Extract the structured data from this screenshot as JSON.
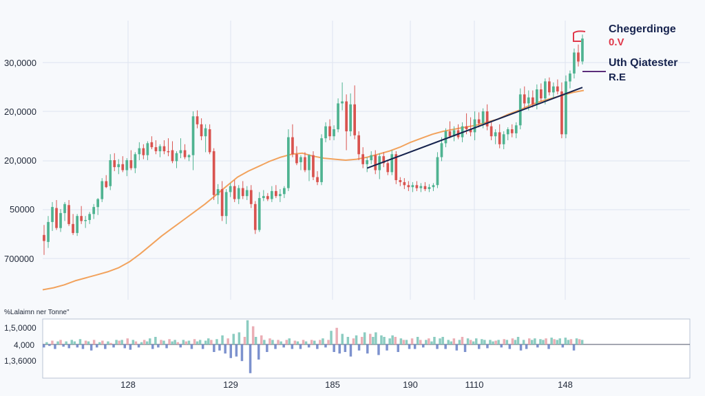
{
  "chart_data": {
    "type": "candlestick",
    "grid": true,
    "price_panel": {
      "y_tick_labels": [
        "30,0000",
        "20,0000",
        "20,0000",
        "50000",
        "700000"
      ],
      "x_tick_labels": [
        "128",
        "129",
        "185",
        "190",
        "1110",
        "148"
      ],
      "candles": [
        {
          "o": 6.5,
          "h": 7.5,
          "l": 4.5,
          "c": 5.9
        },
        {
          "o": 5.8,
          "h": 8.4,
          "l": 5.2,
          "c": 7.8
        },
        {
          "o": 7.8,
          "h": 9.8,
          "l": 6.9,
          "c": 9.3
        },
        {
          "o": 9.2,
          "h": 10.0,
          "l": 7.0,
          "c": 7.2
        },
        {
          "o": 7.2,
          "h": 9.1,
          "l": 6.8,
          "c": 8.7
        },
        {
          "o": 8.7,
          "h": 9.8,
          "l": 7.9,
          "c": 9.6
        },
        {
          "o": 9.5,
          "h": 10.0,
          "l": 7.4,
          "c": 7.6
        },
        {
          "o": 7.6,
          "h": 8.6,
          "l": 6.5,
          "c": 6.7
        },
        {
          "o": 6.7,
          "h": 8.6,
          "l": 6.4,
          "c": 8.4
        },
        {
          "o": 8.4,
          "h": 9.4,
          "l": 7.6,
          "c": 7.9
        },
        {
          "o": 7.9,
          "h": 8.4,
          "l": 7.2,
          "c": 8.0
        },
        {
          "o": 8.0,
          "h": 8.8,
          "l": 7.6,
          "c": 8.6
        },
        {
          "o": 8.6,
          "h": 9.6,
          "l": 8.1,
          "c": 9.3
        },
        {
          "o": 9.3,
          "h": 10.2,
          "l": 8.5,
          "c": 10.1
        },
        {
          "o": 10.1,
          "h": 12.2,
          "l": 9.8,
          "c": 11.9
        },
        {
          "o": 11.9,
          "h": 12.5,
          "l": 11.2,
          "c": 11.3
        },
        {
          "o": 11.4,
          "h": 14.6,
          "l": 11.0,
          "c": 14.0
        },
        {
          "o": 14.0,
          "h": 14.7,
          "l": 12.9,
          "c": 13.3
        },
        {
          "o": 13.3,
          "h": 14.1,
          "l": 12.6,
          "c": 13.6
        },
        {
          "o": 13.6,
          "h": 14.4,
          "l": 12.8,
          "c": 13.0
        },
        {
          "o": 13.0,
          "h": 14.2,
          "l": 12.4,
          "c": 14.0
        },
        {
          "o": 14.0,
          "h": 15.0,
          "l": 13.0,
          "c": 13.2
        },
        {
          "o": 13.2,
          "h": 14.8,
          "l": 12.7,
          "c": 14.6
        },
        {
          "o": 14.6,
          "h": 15.8,
          "l": 14.0,
          "c": 15.2
        },
        {
          "o": 15.2,
          "h": 15.6,
          "l": 14.1,
          "c": 14.5
        },
        {
          "o": 14.5,
          "h": 15.9,
          "l": 14.0,
          "c": 15.7
        },
        {
          "o": 15.8,
          "h": 16.4,
          "l": 15.1,
          "c": 15.3
        },
        {
          "o": 15.3,
          "h": 16.0,
          "l": 14.6,
          "c": 14.9
        },
        {
          "o": 14.9,
          "h": 15.6,
          "l": 14.3,
          "c": 15.4
        },
        {
          "o": 15.4,
          "h": 16.0,
          "l": 14.6,
          "c": 14.9
        },
        {
          "o": 14.9,
          "h": 16.2,
          "l": 14.4,
          "c": 14.8
        },
        {
          "o": 15.0,
          "h": 15.9,
          "l": 13.7,
          "c": 13.9
        },
        {
          "o": 13.9,
          "h": 14.9,
          "l": 13.2,
          "c": 14.7
        },
        {
          "o": 14.7,
          "h": 16.2,
          "l": 14.2,
          "c": 15.0
        },
        {
          "o": 15.0,
          "h": 15.6,
          "l": 14.1,
          "c": 14.3
        },
        {
          "o": 14.3,
          "h": 14.6,
          "l": 13.9,
          "c": 14.5
        },
        {
          "o": 14.5,
          "h": 18.9,
          "l": 13.0,
          "c": 18.4
        },
        {
          "o": 18.4,
          "h": 19.0,
          "l": 17.2,
          "c": 17.6
        },
        {
          "o": 17.6,
          "h": 18.2,
          "l": 16.0,
          "c": 16.4
        },
        {
          "o": 16.4,
          "h": 17.6,
          "l": 14.8,
          "c": 17.2
        },
        {
          "o": 17.1,
          "h": 17.6,
          "l": 14.6,
          "c": 14.8
        },
        {
          "o": 14.9,
          "h": 15.2,
          "l": 10.0,
          "c": 10.5
        },
        {
          "o": 10.5,
          "h": 11.6,
          "l": 9.6,
          "c": 11.1
        },
        {
          "o": 11.1,
          "h": 11.9,
          "l": 7.9,
          "c": 8.4
        },
        {
          "o": 8.4,
          "h": 11.1,
          "l": 7.6,
          "c": 10.8
        },
        {
          "o": 10.8,
          "h": 11.7,
          "l": 10.3,
          "c": 11.4
        },
        {
          "o": 11.4,
          "h": 12.0,
          "l": 9.8,
          "c": 10.1
        },
        {
          "o": 10.1,
          "h": 11.5,
          "l": 9.6,
          "c": 11.2
        },
        {
          "o": 11.2,
          "h": 11.9,
          "l": 10.1,
          "c": 10.4
        },
        {
          "o": 10.4,
          "h": 11.4,
          "l": 10.0,
          "c": 11.0
        },
        {
          "o": 11.0,
          "h": 11.5,
          "l": 9.2,
          "c": 9.6
        },
        {
          "o": 9.6,
          "h": 9.9,
          "l": 6.6,
          "c": 7.0
        },
        {
          "o": 7.0,
          "h": 10.8,
          "l": 6.8,
          "c": 10.2
        },
        {
          "o": 10.2,
          "h": 11.0,
          "l": 9.9,
          "c": 10.4
        },
        {
          "o": 10.4,
          "h": 10.7,
          "l": 9.9,
          "c": 10.1
        },
        {
          "o": 10.1,
          "h": 11.4,
          "l": 9.8,
          "c": 10.9
        },
        {
          "o": 10.9,
          "h": 11.5,
          "l": 10.2,
          "c": 10.4
        },
        {
          "o": 10.4,
          "h": 11.1,
          "l": 9.8,
          "c": 10.6
        },
        {
          "o": 10.6,
          "h": 11.4,
          "l": 10.2,
          "c": 11.2
        },
        {
          "o": 11.2,
          "h": 17.1,
          "l": 10.9,
          "c": 16.3
        },
        {
          "o": 16.3,
          "h": 17.6,
          "l": 14.3,
          "c": 14.6
        },
        {
          "o": 14.6,
          "h": 15.4,
          "l": 13.5,
          "c": 13.7
        },
        {
          "o": 13.8,
          "h": 14.5,
          "l": 13.0,
          "c": 14.3
        },
        {
          "o": 14.3,
          "h": 14.8,
          "l": 12.8,
          "c": 13.0
        },
        {
          "o": 13.0,
          "h": 14.6,
          "l": 11.9,
          "c": 14.5
        },
        {
          "o": 14.5,
          "h": 14.9,
          "l": 12.0,
          "c": 12.3
        },
        {
          "o": 12.3,
          "h": 12.9,
          "l": 11.5,
          "c": 11.8
        },
        {
          "o": 11.8,
          "h": 16.6,
          "l": 11.5,
          "c": 16.2
        },
        {
          "o": 16.2,
          "h": 17.8,
          "l": 15.8,
          "c": 17.4
        },
        {
          "o": 17.4,
          "h": 18.1,
          "l": 16.0,
          "c": 16.4
        },
        {
          "o": 16.4,
          "h": 17.5,
          "l": 16.0,
          "c": 17.1
        },
        {
          "o": 17.1,
          "h": 20.2,
          "l": 16.8,
          "c": 19.7
        },
        {
          "o": 19.7,
          "h": 21.8,
          "l": 19.0,
          "c": 19.9
        },
        {
          "o": 19.9,
          "h": 20.6,
          "l": 15.0,
          "c": 16.9
        },
        {
          "o": 16.9,
          "h": 20.7,
          "l": 16.4,
          "c": 19.6
        },
        {
          "o": 19.6,
          "h": 21.5,
          "l": 16.1,
          "c": 16.5
        },
        {
          "o": 16.5,
          "h": 16.9,
          "l": 14.0,
          "c": 14.6
        },
        {
          "o": 14.6,
          "h": 15.3,
          "l": 13.2,
          "c": 13.6
        },
        {
          "o": 13.6,
          "h": 14.3,
          "l": 12.8,
          "c": 14.0
        },
        {
          "o": 14.0,
          "h": 14.9,
          "l": 13.6,
          "c": 14.5
        },
        {
          "o": 14.5,
          "h": 15.0,
          "l": 12.6,
          "c": 13.0
        },
        {
          "o": 13.0,
          "h": 14.7,
          "l": 12.1,
          "c": 14.4
        },
        {
          "o": 14.4,
          "h": 14.8,
          "l": 13.3,
          "c": 13.7
        },
        {
          "o": 13.7,
          "h": 14.0,
          "l": 12.5,
          "c": 12.8
        },
        {
          "o": 12.8,
          "h": 15.0,
          "l": 12.5,
          "c": 14.6
        },
        {
          "o": 14.6,
          "h": 14.9,
          "l": 11.6,
          "c": 12.0
        },
        {
          "o": 12.0,
          "h": 12.3,
          "l": 11.4,
          "c": 11.8
        },
        {
          "o": 11.8,
          "h": 12.2,
          "l": 11.1,
          "c": 11.5
        },
        {
          "o": 11.5,
          "h": 11.9,
          "l": 10.9,
          "c": 11.3
        },
        {
          "o": 11.3,
          "h": 11.8,
          "l": 10.8,
          "c": 11.5
        },
        {
          "o": 11.5,
          "h": 11.9,
          "l": 10.9,
          "c": 11.2
        },
        {
          "o": 11.2,
          "h": 11.7,
          "l": 10.8,
          "c": 11.4
        },
        {
          "o": 11.4,
          "h": 11.8,
          "l": 10.9,
          "c": 11.1
        },
        {
          "o": 11.1,
          "h": 11.6,
          "l": 10.8,
          "c": 11.3
        },
        {
          "o": 11.3,
          "h": 11.7,
          "l": 10.9,
          "c": 11.5
        },
        {
          "o": 11.5,
          "h": 14.8,
          "l": 11.2,
          "c": 14.3
        },
        {
          "o": 14.3,
          "h": 16.3,
          "l": 13.9,
          "c": 15.7
        },
        {
          "o": 15.7,
          "h": 17.2,
          "l": 15.3,
          "c": 16.9
        },
        {
          "o": 16.9,
          "h": 17.9,
          "l": 16.2,
          "c": 16.4
        },
        {
          "o": 16.4,
          "h": 17.4,
          "l": 15.9,
          "c": 17.0
        },
        {
          "o": 17.0,
          "h": 17.6,
          "l": 16.1,
          "c": 16.3
        },
        {
          "o": 16.3,
          "h": 17.8,
          "l": 15.8,
          "c": 17.4
        },
        {
          "o": 17.4,
          "h": 18.7,
          "l": 16.6,
          "c": 17.1
        },
        {
          "o": 17.1,
          "h": 18.3,
          "l": 16.4,
          "c": 16.8
        },
        {
          "o": 16.8,
          "h": 18.9,
          "l": 16.0,
          "c": 18.1
        },
        {
          "o": 18.1,
          "h": 18.8,
          "l": 17.3,
          "c": 17.7
        },
        {
          "o": 17.7,
          "h": 19.2,
          "l": 17.2,
          "c": 18.9
        },
        {
          "o": 18.9,
          "h": 19.6,
          "l": 17.0,
          "c": 17.4
        },
        {
          "o": 17.4,
          "h": 17.9,
          "l": 16.0,
          "c": 16.4
        },
        {
          "o": 16.4,
          "h": 17.1,
          "l": 15.6,
          "c": 16.8
        },
        {
          "o": 16.8,
          "h": 17.6,
          "l": 15.2,
          "c": 15.6
        },
        {
          "o": 15.6,
          "h": 16.9,
          "l": 15.1,
          "c": 16.6
        },
        {
          "o": 16.6,
          "h": 17.3,
          "l": 16.0,
          "c": 17.1
        },
        {
          "o": 17.1,
          "h": 17.6,
          "l": 16.3,
          "c": 16.7
        },
        {
          "o": 16.7,
          "h": 17.8,
          "l": 16.2,
          "c": 17.5
        },
        {
          "o": 17.5,
          "h": 21.2,
          "l": 17.1,
          "c": 20.6
        },
        {
          "o": 20.6,
          "h": 21.4,
          "l": 19.2,
          "c": 19.7
        },
        {
          "o": 19.7,
          "h": 21.0,
          "l": 19.0,
          "c": 20.3
        },
        {
          "o": 20.3,
          "h": 21.0,
          "l": 19.3,
          "c": 19.6
        },
        {
          "o": 19.6,
          "h": 21.6,
          "l": 19.1,
          "c": 21.1
        },
        {
          "o": 21.1,
          "h": 21.7,
          "l": 19.9,
          "c": 20.2
        },
        {
          "o": 20.2,
          "h": 22.2,
          "l": 19.6,
          "c": 21.9
        },
        {
          "o": 21.9,
          "h": 22.3,
          "l": 20.5,
          "c": 20.8
        },
        {
          "o": 20.8,
          "h": 21.8,
          "l": 20.2,
          "c": 21.4
        },
        {
          "o": 21.4,
          "h": 22.1,
          "l": 20.6,
          "c": 20.9
        },
        {
          "o": 20.9,
          "h": 21.8,
          "l": 16.2,
          "c": 16.6
        },
        {
          "o": 16.6,
          "h": 22.5,
          "l": 16.2,
          "c": 21.9
        },
        {
          "o": 21.9,
          "h": 23.0,
          "l": 21.2,
          "c": 22.7
        },
        {
          "o": 22.7,
          "h": 25.2,
          "l": 22.2,
          "c": 24.8
        },
        {
          "o": 24.8,
          "h": 25.6,
          "l": 23.4,
          "c": 23.9
        },
        {
          "o": 23.9,
          "h": 26.6,
          "l": 23.6,
          "c": 26.2
        }
      ],
      "moving_average": [
        1.0,
        1.2,
        1.5,
        1.9,
        2.2,
        2.5,
        2.8,
        3.2,
        3.8,
        4.6,
        5.5,
        6.4,
        7.2,
        8.0,
        8.8,
        9.6,
        10.5,
        11.4,
        12.3,
        12.9,
        13.4,
        13.9,
        14.3,
        14.6,
        14.7,
        14.4,
        14.2,
        14.1,
        14.0,
        14.1,
        14.3,
        14.6,
        14.9,
        15.3,
        15.8,
        16.2,
        16.6,
        16.9,
        17.1,
        17.3,
        17.5,
        17.8,
        18.1,
        18.6,
        19.0,
        19.5,
        19.9,
        20.2,
        20.5,
        20.8,
        21.0
      ],
      "trendline": {
        "from": [
          0.6,
          13.2
        ],
        "to": [
          1.0,
          21.3
        ]
      },
      "annotations": [
        {
          "text": "Chegerdinge",
          "color": "#16234e"
        },
        {
          "text": "0.V",
          "color": "#e0384a"
        },
        {
          "text": "Uth Qiatester",
          "color": "#16234e"
        },
        {
          "text": "R.E",
          "color": "#16234e"
        }
      ]
    },
    "volume_panel": {
      "title": "%Lalaimn ner Tonne\"",
      "y_tick_labels": [
        "1,5,0000",
        "4,000",
        "1,3,6000"
      ],
      "values": [
        -0.2,
        0.15,
        -0.1,
        0.25,
        -0.3,
        0.2,
        0.3,
        -0.15,
        0.2,
        -0.25,
        0.3,
        0.2,
        -0.2,
        0.35,
        -0.3,
        0.25,
        0.2,
        -0.4,
        0.3,
        -0.2,
        0.15,
        0.25,
        -0.3,
        0.2,
        0.1,
        -0.2,
        0.3,
        0.25,
        0.3,
        -0.25,
        0.4,
        -0.35,
        0.3,
        0.2,
        -0.2,
        0.15,
        0.3,
        0.2,
        0.4,
        -0.3,
        0.5,
        -0.2,
        0.3,
        0.25,
        -0.25,
        0.35,
        0.2,
        0.3,
        0.15,
        -0.2,
        0.3,
        0.2,
        0.25,
        -0.3,
        0.35,
        0.2,
        0.3,
        -0.3,
        0.25,
        0.4,
        0.3,
        -0.5,
        0.35,
        -0.4,
        0.6,
        -0.6,
        0.4,
        -0.9,
        0.7,
        -0.8,
        0.8,
        -1.1,
        0.5,
        1.6,
        -1.9,
        1.2,
        0.5,
        -1.0,
        0.6,
        0.3,
        -0.5,
        0.4,
        0.3,
        -0.3,
        0.3,
        0.2,
        -0.2,
        0.3,
        0.4,
        -0.3,
        0.25,
        0.2,
        -0.3,
        0.3,
        0.2,
        -0.2,
        0.3,
        0.25,
        -0.3,
        0.3,
        0.4,
        -0.2,
        0.3,
        0.9,
        -0.5,
        1.1,
        -0.6,
        0.7,
        -0.5,
        0.5,
        -0.8,
        0.4,
        0.6,
        -0.4,
        0.5,
        0.8,
        -0.6,
        0.7,
        0.5,
        0.8,
        -0.7,
        0.6,
        0.5,
        -0.4,
        0.4,
        0.6,
        0.5,
        -0.5,
        0.4,
        0.3,
        0.3,
        -0.3,
        0.4,
        -0.3,
        0.5,
        0.3,
        -0.2,
        0.3,
        0.4,
        0.2,
        0.5,
        -0.3,
        0.4,
        0.5,
        -0.3,
        0.3,
        0.2,
        0.4,
        -0.4,
        0.3,
        0.5,
        -0.5,
        0.4,
        0.3,
        0.2,
        0.4,
        -0.3,
        0.35,
        0.3,
        -0.25,
        0.3,
        0.2,
        0.25,
        0.3,
        -0.2,
        0.35,
        0.3,
        -0.3,
        0.4,
        0.3,
        0.5,
        -0.4,
        0.3,
        -0.3,
        0.4,
        0.3,
        0.4,
        -0.2,
        0.35,
        0.3,
        0.4,
        -0.3,
        0.45,
        0.35,
        0.3,
        0.4,
        -0.2,
        0.45,
        0.3,
        0.35,
        -0.4,
        0.4,
        0.35,
        0.3
      ]
    },
    "colors": {
      "up": "#4fb391",
      "down": "#d9534f",
      "moving_average": "#f2a25c",
      "trendline": "#16234e",
      "grid": "#dde4ef",
      "axis_text": "#222a3a",
      "volume_up_a": "#7fc6ba",
      "volume_up_b": "#e9a5ad",
      "volume_down": "#6f86c9"
    }
  }
}
